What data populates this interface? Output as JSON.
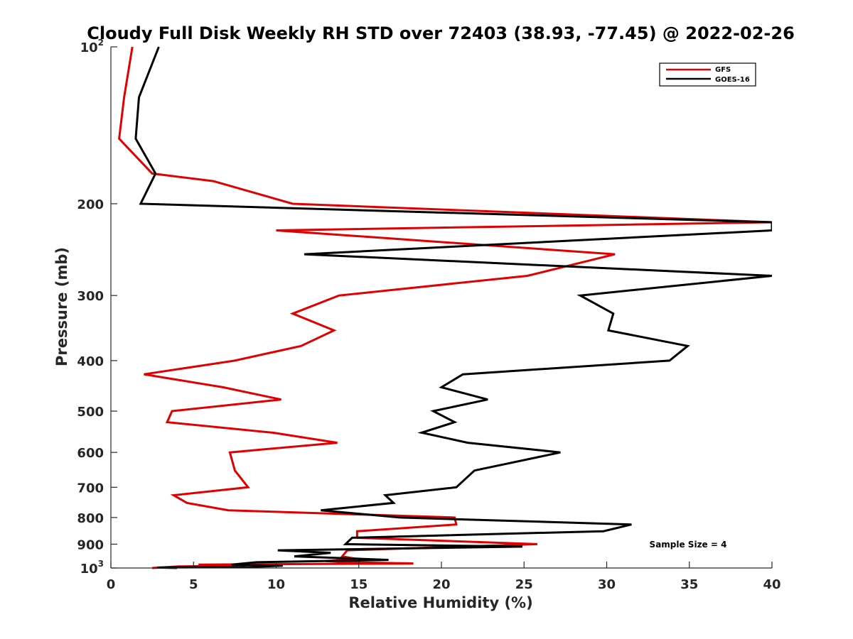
{
  "chart_data": {
    "type": "line",
    "title": "Cloudy Full Disk Weekly RH STD over 72403 (38.93, -77.45) @ 2022-02-26",
    "xlabel": "Relative Humidity (%)",
    "ylabel": "Pressure (mb)",
    "xlim": [
      0,
      40
    ],
    "ylim": [
      100,
      1000
    ],
    "y_scale": "log",
    "y_reversed": true,
    "grid": false,
    "legend_position": "top-right",
    "x_ticks": [
      "0",
      "5",
      "10",
      "15",
      "20",
      "25",
      "30",
      "35",
      "40"
    ],
    "y_ticks": [
      {
        "value": 100,
        "base": "10",
        "exp": "2"
      },
      {
        "value": 200,
        "label": "200"
      },
      {
        "value": 300,
        "label": "300"
      },
      {
        "value": 400,
        "label": "400"
      },
      {
        "value": 500,
        "label": "500"
      },
      {
        "value": 600,
        "label": "600"
      },
      {
        "value": 700,
        "label": "700"
      },
      {
        "value": 800,
        "label": "800"
      },
      {
        "value": 900,
        "label": "900"
      },
      {
        "value": 1000,
        "base": "10",
        "exp": "3"
      }
    ],
    "annotation": "Sample Size = 4",
    "series": [
      {
        "name": "GFS",
        "color": "#e00000",
        "points": [
          [
            1.3,
            100
          ],
          [
            0.8,
            125
          ],
          [
            0.5,
            150
          ],
          [
            2.5,
            175
          ],
          [
            6.2,
            181
          ],
          [
            11.0,
            200
          ],
          [
            40.0,
            217
          ],
          [
            10.0,
            225
          ],
          [
            30.5,
            250
          ],
          [
            25.2,
            275
          ],
          [
            13.8,
            300
          ],
          [
            11.0,
            325
          ],
          [
            13.5,
            350
          ],
          [
            11.5,
            375
          ],
          [
            7.5,
            400
          ],
          [
            2.0,
            425
          ],
          [
            6.8,
            450
          ],
          [
            10.3,
            475
          ],
          [
            3.7,
            500
          ],
          [
            3.4,
            525
          ],
          [
            9.8,
            550
          ],
          [
            13.7,
            575
          ],
          [
            7.2,
            600
          ],
          [
            7.5,
            650
          ],
          [
            8.3,
            700
          ],
          [
            3.8,
            725
          ],
          [
            4.6,
            750
          ],
          [
            7.1,
            775
          ],
          [
            20.8,
            800
          ],
          [
            20.9,
            825
          ],
          [
            14.9,
            850
          ],
          [
            14.9,
            875
          ],
          [
            25.8,
            900
          ],
          [
            14.3,
            925
          ],
          [
            14.0,
            950
          ],
          [
            14.8,
            960
          ],
          [
            13.0,
            970
          ],
          [
            14.2,
            975
          ],
          [
            18.3,
            980
          ],
          [
            5.3,
            985
          ],
          [
            7.0,
            988
          ],
          [
            8.2,
            990
          ],
          [
            4.1,
            993
          ],
          [
            2.5,
            1000
          ]
        ]
      },
      {
        "name": "GOES-16",
        "color": "#000000",
        "points": [
          [
            2.9,
            100
          ],
          [
            1.7,
            125
          ],
          [
            1.5,
            150
          ],
          [
            2.7,
            175
          ],
          [
            1.8,
            200
          ],
          [
            40.0,
            217
          ],
          [
            40.0,
            225
          ],
          [
            11.7,
            250
          ],
          [
            40.0,
            275
          ],
          [
            28.4,
            300
          ],
          [
            30.4,
            325
          ],
          [
            30.1,
            350
          ],
          [
            34.9,
            375
          ],
          [
            33.8,
            400
          ],
          [
            21.3,
            425
          ],
          [
            20.0,
            450
          ],
          [
            22.8,
            475
          ],
          [
            19.5,
            500
          ],
          [
            20.8,
            525
          ],
          [
            18.8,
            550
          ],
          [
            21.6,
            575
          ],
          [
            27.2,
            600
          ],
          [
            22.0,
            650
          ],
          [
            20.9,
            700
          ],
          [
            16.6,
            725
          ],
          [
            17.1,
            750
          ],
          [
            12.7,
            775
          ],
          [
            17.5,
            800
          ],
          [
            31.5,
            825
          ],
          [
            29.8,
            850
          ],
          [
            14.6,
            875
          ],
          [
            14.2,
            900
          ],
          [
            24.9,
            910
          ],
          [
            10.1,
            925
          ],
          [
            13.3,
            935
          ],
          [
            11.1,
            950
          ],
          [
            16.8,
            965
          ],
          [
            8.8,
            975
          ],
          [
            7.3,
            985
          ],
          [
            10.4,
            990
          ],
          [
            8.5,
            995
          ],
          [
            2.8,
            998
          ],
          [
            4.0,
            1000
          ]
        ]
      }
    ]
  }
}
